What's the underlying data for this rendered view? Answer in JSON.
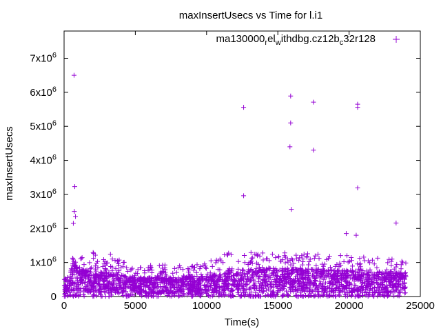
{
  "chart_data": {
    "type": "scatter",
    "title": "maxInsertUsecs vs Time for l.i1",
    "xlabel": "Time(s)",
    "ylabel": "maxInsertUsecs",
    "xlim": [
      0,
      25000
    ],
    "ylim": [
      0,
      7800000
    ],
    "x_ticks": [
      0,
      5000,
      10000,
      15000,
      20000,
      25000
    ],
    "y_ticks": [
      {
        "value": 0,
        "mantissa": "0",
        "exp": ""
      },
      {
        "value": 1000000,
        "mantissa": "1x10",
        "exp": "6"
      },
      {
        "value": 2000000,
        "mantissa": "2x10",
        "exp": "6"
      },
      {
        "value": 3000000,
        "mantissa": "3x10",
        "exp": "6"
      },
      {
        "value": 4000000,
        "mantissa": "4x10",
        "exp": "6"
      },
      {
        "value": 5000000,
        "mantissa": "5x10",
        "exp": "6"
      },
      {
        "value": 6000000,
        "mantissa": "6x10",
        "exp": "6"
      },
      {
        "value": 7000000,
        "mantissa": "7x10",
        "exp": "6"
      }
    ],
    "grid": false,
    "legend_position": "top-right",
    "series": [
      {
        "name": "ma130000_rel_withdbg.cz12b_c32r128",
        "legend_parts": [
          {
            "text": "ma130000",
            "style": "normal"
          },
          {
            "text": "r",
            "style": "sub"
          },
          {
            "text": "el",
            "style": "normal"
          },
          {
            "text": "w",
            "style": "sub"
          },
          {
            "text": "ithdbg.cz12b",
            "style": "normal"
          },
          {
            "text": "c",
            "style": "sub"
          },
          {
            "text": "32r128",
            "style": "normal"
          }
        ],
        "color": "#9400d3",
        "marker": "plus",
        "outliers": [
          [
            700,
            6500000
          ],
          [
            750,
            3230000
          ],
          [
            720,
            2500000
          ],
          [
            800,
            2350000
          ],
          [
            650,
            2150000
          ],
          [
            12600,
            5560000
          ],
          [
            12600,
            2960000
          ],
          [
            15900,
            5890000
          ],
          [
            15900,
            5100000
          ],
          [
            15850,
            4400000
          ],
          [
            15950,
            2560000
          ],
          [
            17500,
            5710000
          ],
          [
            17500,
            4300000
          ],
          [
            20600,
            5650000
          ],
          [
            20600,
            5560000
          ],
          [
            20600,
            3190000
          ],
          [
            23300,
            2160000
          ],
          [
            19800,
            1850000
          ],
          [
            20500,
            1800000
          ]
        ],
        "envelope": [
          {
            "x": 0,
            "typ": 250000,
            "upper": 600000
          },
          {
            "x": 600,
            "typ": 700000,
            "upper": 1200000
          },
          {
            "x": 1000,
            "typ": 600000,
            "upper": 1300000
          },
          {
            "x": 3000,
            "typ": 500000,
            "upper": 1300000
          },
          {
            "x": 5000,
            "typ": 400000,
            "upper": 900000
          },
          {
            "x": 8000,
            "typ": 400000,
            "upper": 950000
          },
          {
            "x": 10500,
            "typ": 450000,
            "upper": 1100000
          },
          {
            "x": 11500,
            "typ": 550000,
            "upper": 1300000
          },
          {
            "x": 15000,
            "typ": 600000,
            "upper": 1300000
          },
          {
            "x": 20000,
            "typ": 550000,
            "upper": 1200000
          },
          {
            "x": 24000,
            "typ": 500000,
            "upper": 1100000
          }
        ],
        "x_range": [
          0,
          24000
        ]
      }
    ]
  }
}
